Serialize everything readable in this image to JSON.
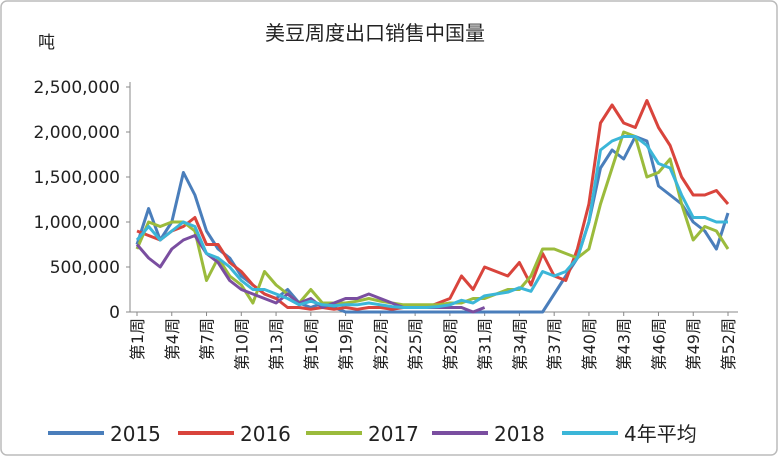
{
  "chart_data": {
    "type": "line",
    "title": "美豆周度出口销售中国量",
    "y_label": "吨",
    "categories": [
      "第1周",
      null,
      null,
      "第4周",
      null,
      null,
      "第7周",
      null,
      null,
      "第10周",
      null,
      null,
      "第13周",
      null,
      null,
      "第16周",
      null,
      null,
      "第19周",
      null,
      null,
      "第22周",
      null,
      null,
      "第25周",
      null,
      null,
      "第28周",
      null,
      null,
      "第31周",
      null,
      null,
      "第34周",
      null,
      null,
      "第37周",
      null,
      null,
      "第40周",
      null,
      null,
      "第43周",
      null,
      null,
      "第46周",
      null,
      null,
      "第49周",
      null,
      null,
      "第52周"
    ],
    "ylim": [
      0,
      2500000
    ],
    "yticks": [
      0,
      {
        "value": 500000,
        "label": "500,000"
      },
      {
        "value": 1000000,
        "label": "1,000,000"
      },
      {
        "value": 1500000,
        "label": "1,500,000"
      },
      {
        "value": 2000000,
        "label": "2,000,000"
      },
      {
        "value": 2500000,
        "label": "2,500,000"
      }
    ],
    "series": [
      {
        "name": "2015",
        "color": "#4a7ebb",
        "values": [
          750000,
          1150000,
          800000,
          1000000,
          1550000,
          1300000,
          900000,
          700000,
          600000,
          400000,
          300000,
          200000,
          150000,
          250000,
          100000,
          50000,
          100000,
          50000,
          0,
          0,
          0,
          0,
          0,
          0,
          0,
          0,
          0,
          0,
          0,
          0,
          0,
          0,
          0,
          0,
          0,
          0,
          200000,
          400000,
          600000,
          1000000,
          1600000,
          1800000,
          1700000,
          1950000,
          1900000,
          1400000,
          1300000,
          1200000,
          1000000,
          900000,
          700000,
          1100000
        ]
      },
      {
        "name": "2016",
        "color": "#d9443c",
        "values": [
          900000,
          850000,
          800000,
          900000,
          950000,
          1050000,
          750000,
          750000,
          550000,
          450000,
          300000,
          200000,
          150000,
          50000,
          50000,
          30000,
          50000,
          30000,
          50000,
          30000,
          50000,
          50000,
          30000,
          50000,
          50000,
          50000,
          100000,
          150000,
          400000,
          250000,
          500000,
          450000,
          400000,
          550000,
          300000,
          650000,
          400000,
          350000,
          700000,
          1200000,
          2100000,
          2300000,
          2100000,
          2050000,
          2350000,
          2050000,
          1850000,
          1500000,
          1300000,
          1300000,
          1350000,
          1200000
        ]
      },
      {
        "name": "2017",
        "color": "#9bbb3c",
        "values": [
          700000,
          1000000,
          950000,
          1000000,
          1000000,
          900000,
          350000,
          600000,
          400000,
          300000,
          100000,
          450000,
          300000,
          200000,
          100000,
          250000,
          100000,
          100000,
          100000,
          120000,
          150000,
          120000,
          100000,
          80000,
          80000,
          80000,
          80000,
          100000,
          100000,
          150000,
          150000,
          200000,
          250000,
          250000,
          400000,
          700000,
          700000,
          650000,
          600000,
          700000,
          1200000,
          1600000,
          2000000,
          1950000,
          1500000,
          1550000,
          1700000,
          1200000,
          800000,
          950000,
          900000,
          700000
        ]
      },
      {
        "name": "2018",
        "color": "#7a4ea0",
        "values": [
          750000,
          600000,
          500000,
          700000,
          800000,
          850000,
          650000,
          550000,
          350000,
          250000,
          200000,
          150000,
          100000,
          200000,
          100000,
          150000,
          50000,
          100000,
          150000,
          150000,
          200000,
          150000,
          100000,
          50000,
          50000,
          50000,
          50000,
          50000,
          50000,
          0,
          50000,
          null,
          null,
          null,
          null,
          null,
          null,
          null,
          null,
          null,
          null,
          null,
          null,
          null,
          null,
          null,
          null,
          null,
          null,
          null,
          null,
          null
        ]
      },
      {
        "name": "4年平均",
        "color": "#3bb6d8",
        "values": [
          800000,
          950000,
          800000,
          900000,
          1000000,
          950000,
          650000,
          600000,
          500000,
          350000,
          250000,
          250000,
          200000,
          150000,
          80000,
          120000,
          80000,
          70000,
          80000,
          80000,
          100000,
          80000,
          60000,
          50000,
          50000,
          50000,
          60000,
          80000,
          130000,
          100000,
          180000,
          200000,
          220000,
          270000,
          230000,
          450000,
          400000,
          450000,
          600000,
          1000000,
          1800000,
          1900000,
          1950000,
          1950000,
          1850000,
          1650000,
          1600000,
          1300000,
          1050000,
          1050000,
          1000000,
          1000000
        ]
      }
    ]
  }
}
